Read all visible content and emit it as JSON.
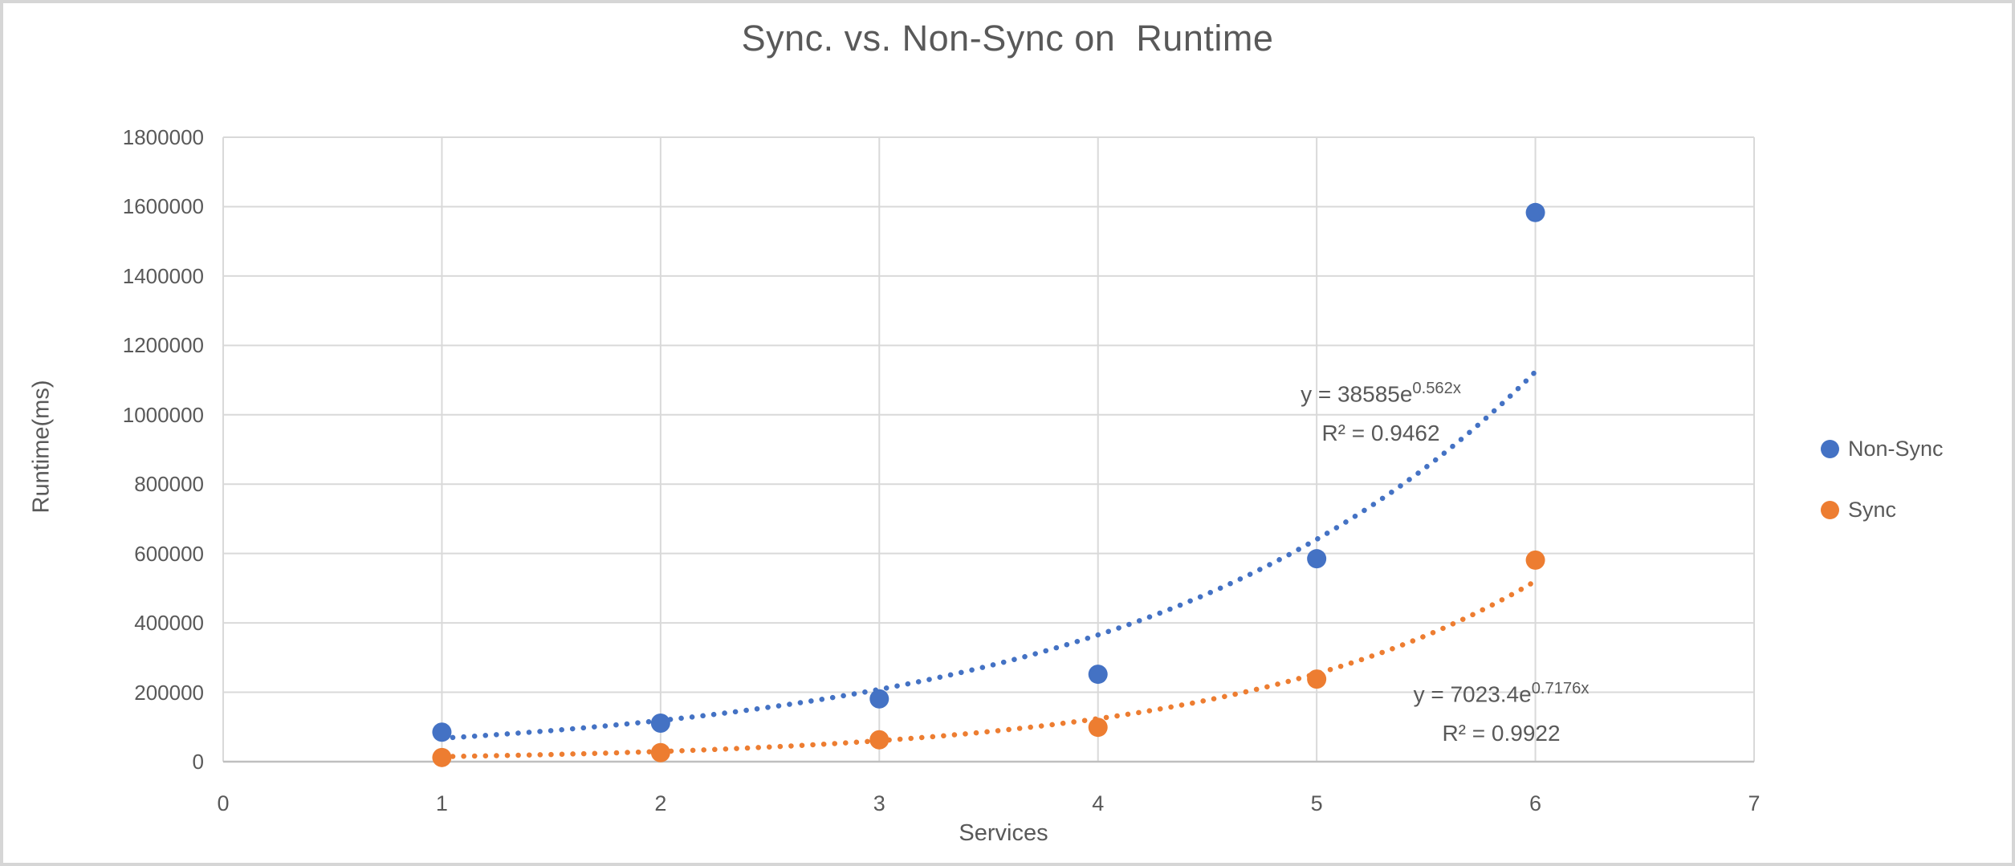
{
  "chart_data": {
    "type": "scatter",
    "title": "Sync. vs. Non-Sync on  Runtime",
    "xlabel": "Services",
    "ylabel": "Runtime(ms)",
    "xlim": [
      0,
      7
    ],
    "ylim": [
      0,
      1800000
    ],
    "x_ticks": [
      0,
      1,
      2,
      3,
      4,
      5,
      6,
      7
    ],
    "y_ticks": [
      0,
      200000,
      400000,
      600000,
      800000,
      1000000,
      1200000,
      1400000,
      1600000,
      1800000
    ],
    "grid": true,
    "legend_position": "right",
    "x": [
      1,
      2,
      3,
      4,
      5,
      6
    ],
    "series": [
      {
        "name": "Non-Sync",
        "color": "#4472C4",
        "values": [
          85000,
          111000,
          181000,
          252000,
          585000,
          1583000
        ],
        "trendline": {
          "type": "exponential",
          "a": 38585,
          "b": 0.562,
          "style": "dotted",
          "equation_base": "y = 38585e",
          "equation_exponent": "0.562x",
          "r2_label": "R² = 0.9462"
        }
      },
      {
        "name": "Sync",
        "color": "#ED7D31",
        "values": [
          12000,
          26000,
          63000,
          99000,
          238000,
          581000
        ],
        "trendline": {
          "type": "exponential",
          "a": 7023.4,
          "b": 0.7176,
          "style": "dotted",
          "equation_base": "y = 7023.4e",
          "equation_exponent": "0.7176x",
          "r2_label": "R² = 0.9922"
        }
      }
    ],
    "gridline_color": "#D9D9D9",
    "axis_line_color": "#BFBFBF",
    "text_color": "#595959"
  }
}
